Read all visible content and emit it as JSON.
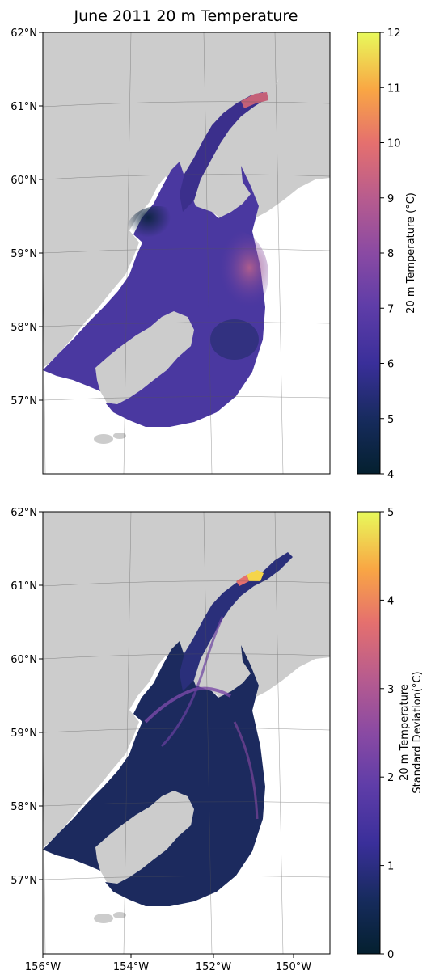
{
  "chart_data": [
    {
      "type": "heatmap",
      "title": "June 2011 20 m Temperature",
      "map": {
        "lon_ticks": [
          "156°W",
          "154°W",
          "152°W",
          "150°W"
        ],
        "lat_ticks": [
          "62°N",
          "61°N",
          "60°N",
          "59°N",
          "58°N",
          "57°N"
        ],
        "lon_range": [
          -156,
          -149
        ],
        "lat_range": [
          56,
          62
        ],
        "show_lon_labels": false,
        "grid": true,
        "land_color": "#cccccc"
      },
      "colorbar": {
        "label": "20 m Temperature (°C)",
        "label_lines": [
          "20 m Temperature (°C)"
        ],
        "range": [
          4,
          12
        ],
        "ticks": [
          "4",
          "5",
          "6",
          "7",
          "8",
          "9",
          "10",
          "11",
          "12"
        ],
        "colormap": "thermal"
      },
      "field": {
        "range": [
          4,
          12
        ],
        "typical_min": 4.5,
        "typical_max": 9.5,
        "hotspot_upper_inlet": 9.5
      }
    },
    {
      "type": "heatmap",
      "title": "",
      "map": {
        "lon_ticks": [
          "156°W",
          "154°W",
          "152°W",
          "150°W"
        ],
        "lat_ticks": [
          "62°N",
          "61°N",
          "60°N",
          "59°N",
          "58°N",
          "57°N"
        ],
        "lon_range": [
          -156,
          -149
        ],
        "lat_range": [
          56,
          62
        ],
        "show_lon_labels": true,
        "grid": true,
        "land_color": "#cccccc"
      },
      "colorbar": {
        "label": "20 m Temperature Standard Deviation(°C)",
        "label_lines": [
          "20 m Temperature",
          "Standard Deviation(°C)"
        ],
        "range": [
          0,
          5
        ],
        "ticks": [
          "0",
          "1",
          "2",
          "3",
          "4",
          "5"
        ],
        "colormap": "thermal"
      },
      "field": {
        "range": [
          0,
          5
        ],
        "typical_min": 0.2,
        "typical_max": 1.5,
        "hotspot_upper_inlet": 5
      }
    }
  ]
}
